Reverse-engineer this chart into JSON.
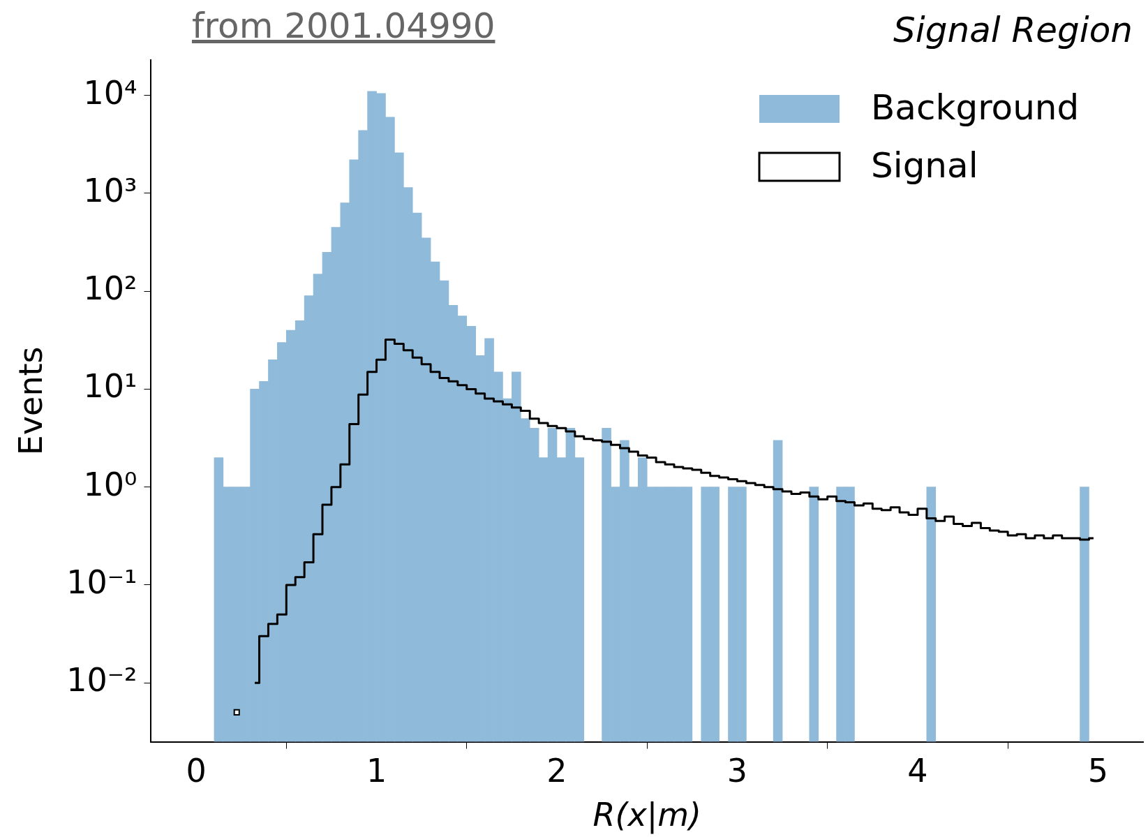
{
  "chart_data": {
    "type": "histogram",
    "title": "Signal Region",
    "xlabel": "R(x|m)",
    "ylabel": "Events",
    "annotations": [
      "from 2001.04990"
    ],
    "bins": [
      0,
      0.05,
      0.1,
      0.15,
      0.2,
      0.25,
      0.3,
      0.35,
      0.4,
      0.45,
      0.5,
      0.55,
      0.6,
      0.65,
      0.7,
      0.75,
      0.8,
      0.85,
      0.9,
      0.95,
      1,
      1.05,
      1.1,
      1.15,
      1.2,
      1.25,
      1.3,
      1.35,
      1.4,
      1.45,
      1.5,
      1.55,
      1.6,
      1.65,
      1.7,
      1.75,
      1.8,
      1.85,
      1.9,
      1.95,
      2,
      2.05,
      2.1,
      2.15,
      2.2,
      2.25,
      2.3,
      2.35,
      2.4,
      2.45,
      2.5,
      2.55,
      2.6,
      2.65,
      2.7,
      2.75,
      2.8,
      2.85,
      2.9,
      2.95,
      3,
      3.05,
      3.1,
      3.15,
      3.2,
      3.25,
      3.3,
      3.35,
      3.4,
      3.45,
      3.5,
      3.55,
      3.6,
      3.65,
      3.7,
      3.75,
      3.8,
      3.85,
      3.9,
      3.95,
      4,
      4.05,
      4.1,
      4.15,
      4.2,
      4.25,
      4.3,
      4.35,
      4.4,
      4.45,
      4.5,
      4.55,
      4.6,
      4.65,
      4.7,
      4.75,
      4.8,
      4.85,
      4.9,
      4.95,
      5
    ],
    "series": [
      {
        "name": "Background",
        "type": "histogram",
        "color": "#8fbad9",
        "values": [
          null,
          null,
          2,
          1,
          1,
          1,
          10,
          12,
          20,
          30,
          40,
          50,
          90,
          150,
          250,
          450,
          800,
          2200,
          4400,
          11000,
          10500,
          6000,
          2600,
          1150,
          630,
          350,
          200,
          128,
          72,
          56,
          44,
          22,
          33,
          15,
          8,
          15,
          5,
          4,
          2,
          4,
          2,
          4,
          2,
          null,
          null,
          4,
          1,
          3,
          1,
          2,
          1,
          1,
          1,
          1,
          1,
          null,
          1,
          1,
          null,
          1,
          1,
          null,
          null,
          null,
          3,
          null,
          null,
          null,
          1,
          null,
          null,
          1,
          1,
          null,
          null,
          null,
          null,
          null,
          null,
          null,
          null,
          1,
          null,
          null,
          null,
          null,
          null,
          null,
          null,
          null,
          null,
          null,
          null,
          null,
          null,
          null,
          null,
          null,
          1,
          null
        ]
      },
      {
        "name": "Signal",
        "type": "step",
        "color": "#000000",
        "x": [
          0.225,
          0.275,
          0.325,
          0.375,
          0.425,
          0.475,
          0.525,
          0.575,
          0.625,
          0.675,
          0.725,
          0.775,
          0.825,
          0.875,
          0.925,
          0.975,
          1.025,
          1.075,
          1.125,
          1.175,
          1.225,
          1.275,
          1.325,
          1.375,
          1.425,
          1.475,
          1.525,
          1.575,
          1.625,
          1.675,
          1.725,
          1.775,
          1.825,
          1.875,
          1.925,
          1.975,
          2.025,
          2.075,
          2.125,
          2.175,
          2.225,
          2.275,
          2.325,
          2.375,
          2.425,
          2.475,
          2.525,
          2.575,
          2.625,
          2.675,
          2.725,
          2.775,
          2.825,
          2.875,
          2.925,
          2.975,
          3.025,
          3.075,
          3.125,
          3.175,
          3.225,
          3.275,
          3.325,
          3.375,
          3.425,
          3.475,
          3.525,
          3.575,
          3.625,
          3.675,
          3.725,
          3.775,
          3.825,
          3.875,
          3.925,
          3.975,
          4.025,
          4.075,
          4.125,
          4.175,
          4.225,
          4.275,
          4.325,
          4.375,
          4.425,
          4.475,
          4.525,
          4.575,
          4.625,
          4.675,
          4.725,
          4.775,
          4.825,
          4.875,
          4.925,
          4.975
        ],
        "values": [
          0.005,
          null,
          0.01,
          0.03,
          0.04,
          0.05,
          0.1,
          0.12,
          0.17,
          0.33,
          0.66,
          1,
          1.7,
          4.4,
          8.8,
          15,
          20,
          32,
          29,
          25,
          21,
          18,
          15,
          13,
          12,
          11,
          10,
          9,
          8,
          7.5,
          7,
          6.5,
          6,
          5,
          4.5,
          4.2,
          4,
          3.7,
          3.3,
          3.1,
          3,
          2.9,
          2.7,
          2.5,
          2.3,
          2.1,
          2,
          1.8,
          1.7,
          1.6,
          1.55,
          1.5,
          1.4,
          1.3,
          1.25,
          1.2,
          1.15,
          1.1,
          1.05,
          1,
          0.95,
          0.9,
          0.85,
          0.88,
          0.8,
          0.75,
          0.8,
          0.72,
          0.7,
          0.65,
          0.68,
          0.6,
          0.58,
          0.62,
          0.55,
          0.52,
          0.6,
          0.48,
          0.45,
          0.5,
          0.42,
          0.4,
          0.43,
          0.38,
          0.36,
          0.35,
          0.32,
          0.33,
          0.3,
          0.32,
          0.3,
          0.32,
          0.3,
          0.3,
          0.29,
          0.3
        ]
      }
    ],
    "xlim": [
      -0.25,
      5.25
    ],
    "xticks": [
      0,
      1,
      2,
      3,
      4,
      5
    ],
    "log": "y",
    "ylim": [
      0.0025,
      23000
    ],
    "yticks": [
      {
        "value": 0.01,
        "label": "10⁻²"
      },
      {
        "value": 0.1,
        "label": "10⁻¹"
      },
      {
        "value": 1,
        "label": "10⁰"
      },
      {
        "value": 10,
        "label": "10¹"
      },
      {
        "value": 100,
        "label": "10²"
      },
      {
        "value": 1000,
        "label": "10³"
      },
      {
        "value": 10000,
        "label": "10⁴"
      }
    ],
    "legend": "top right",
    "grid": false
  }
}
